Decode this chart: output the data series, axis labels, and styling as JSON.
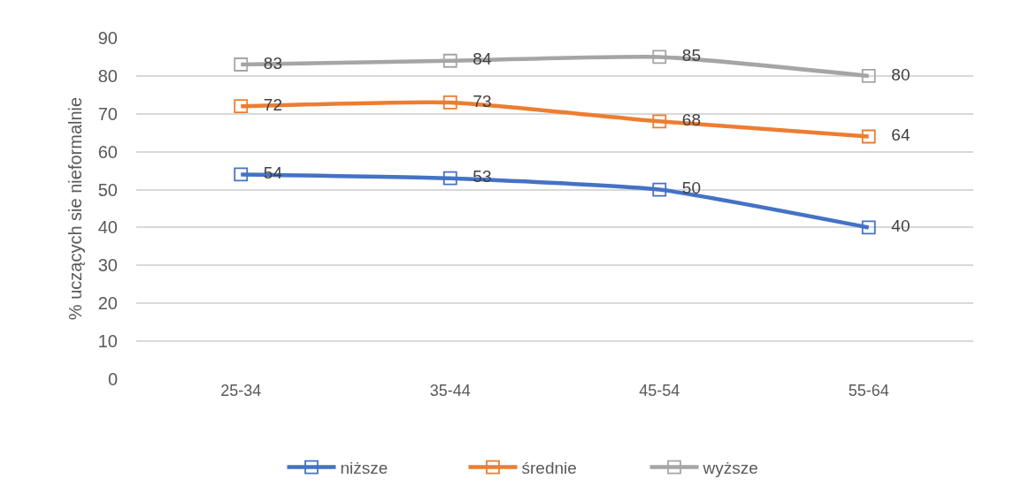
{
  "chart_data": {
    "type": "line",
    "ylabel": "% uczących sie nieformalnie",
    "categories": [
      "25-34",
      "35-44",
      "45-54",
      "55-64"
    ],
    "series": [
      {
        "name": "niższe",
        "color": "#4472c4",
        "values": [
          54,
          53,
          50,
          40
        ]
      },
      {
        "name": "średnie",
        "color": "#ed7d31",
        "values": [
          72,
          73,
          68,
          64
        ]
      },
      {
        "name": "wyższe",
        "color": "#a5a5a5",
        "values": [
          83,
          84,
          85,
          80
        ]
      }
    ],
    "ylim": [
      0,
      90
    ],
    "yticks": [
      0,
      10,
      20,
      30,
      40,
      50,
      60,
      70,
      80,
      90
    ],
    "grid": "y",
    "legend": "bottom",
    "marker": "square",
    "line_style": "solid",
    "data_labels": true
  }
}
